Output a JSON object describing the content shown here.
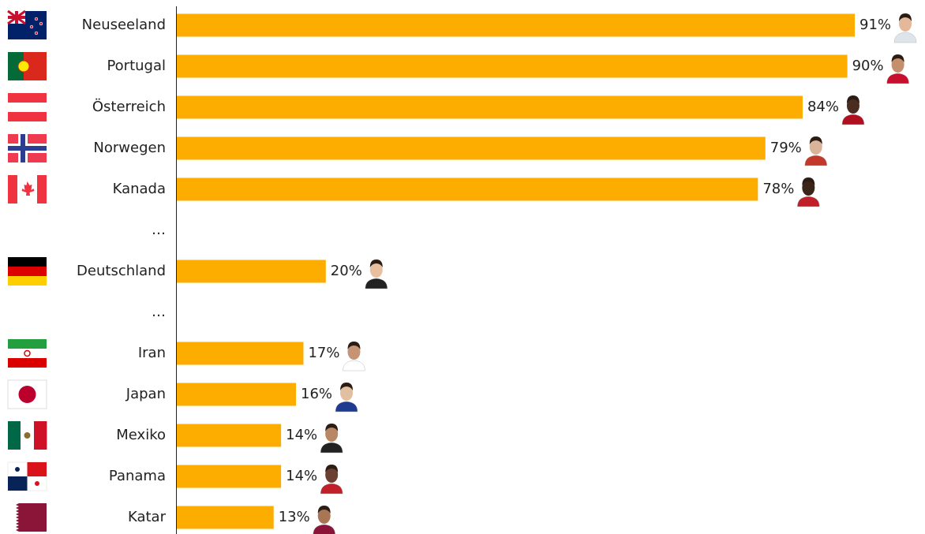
{
  "chart_data": {
    "type": "bar",
    "orientation": "horizontal",
    "categories": [
      "Neuseeland",
      "Portugal",
      "Österreich",
      "Norwegen",
      "Kanada",
      "…",
      "Deutschland",
      "…",
      "Iran",
      "Japan",
      "Mexiko",
      "Panama",
      "Katar"
    ],
    "values": [
      91,
      90,
      84,
      79,
      78,
      null,
      20,
      null,
      17,
      16,
      14,
      14,
      13
    ],
    "value_labels": [
      "91%",
      "90%",
      "84%",
      "79%",
      "78%",
      null,
      "20%",
      null,
      "17%",
      "16%",
      "14%",
      "14%",
      "13%"
    ],
    "color": "#fcad00"
  }
}
